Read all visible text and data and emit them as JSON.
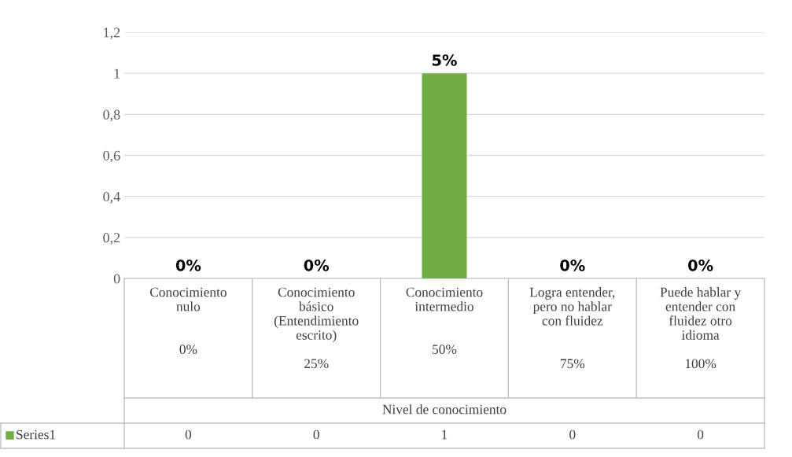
{
  "chart_data": {
    "type": "bar",
    "categories": [
      "Conocimiento\nnulo\n\n\n0%",
      "Conocimiento\nbásico\n(Entendimiento\nescrito)\n\n25%",
      "Conocimiento\nintermedio\n\n\n50%",
      "Logra entender,\npero no hablar\ncon fluidez\n\n\n75%",
      "Puede hablar y\nentender con\nfluidez otro\nidioma\n\n100%"
    ],
    "series": [
      {
        "name": "Series1",
        "color": "#70ad47",
        "values": [
          0,
          0,
          1,
          0,
          0
        ],
        "value_labels": [
          "0",
          "0",
          "1",
          "0",
          "0"
        ]
      }
    ],
    "annotations": [
      "Nivel de conocimiento",
      {
        "text": "0%",
        "x": "Conocimiento\nnulo\n\n\n0%",
        "y": 0
      },
      {
        "text": "0%",
        "x": "Conocimiento\nbásico\n(Entendimiento\nescrito)\n\n25%",
        "y": 0
      },
      {
        "text": "5%",
        "x": "Conocimiento\nintermedio\n\n\n50%",
        "y": 1
      },
      {
        "text": "0%",
        "x": "Logra entender,\npero no hablar\ncon fluidez\n\n\n75%",
        "y": 0
      },
      {
        "text": "0%",
        "x": "Puede hablar y\nentender con\nfluidez otro\nidioma\n\n100%",
        "y": 0
      }
    ],
    "ylim": [
      0,
      1.2
    ],
    "yticks": [
      {
        "value": 0,
        "label": "0"
      },
      {
        "value": 0.2,
        "label": "0,2"
      },
      {
        "value": 0.4,
        "label": "0,4"
      },
      {
        "value": 0.6,
        "label": "0,6"
      },
      {
        "value": 0.8,
        "label": "0,8"
      },
      {
        "value": 1,
        "label": "1"
      },
      {
        "value": 1.2,
        "label": "1,2"
      }
    ],
    "grid": "y",
    "legend": "bottom left"
  }
}
